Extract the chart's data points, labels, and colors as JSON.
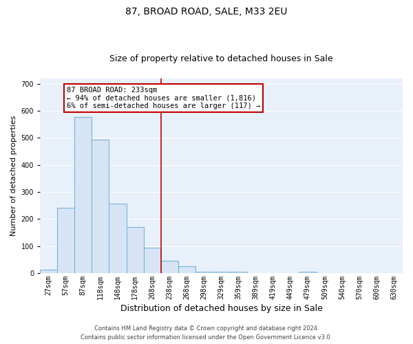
{
  "title": "87, BROAD ROAD, SALE, M33 2EU",
  "subtitle": "Size of property relative to detached houses in Sale",
  "xlabel": "Distribution of detached houses by size in Sale",
  "ylabel": "Number of detached properties",
  "bar_labels": [
    "27sqm",
    "57sqm",
    "87sqm",
    "118sqm",
    "148sqm",
    "178sqm",
    "208sqm",
    "238sqm",
    "268sqm",
    "298sqm",
    "329sqm",
    "359sqm",
    "389sqm",
    "419sqm",
    "449sqm",
    "479sqm",
    "509sqm",
    "540sqm",
    "570sqm",
    "600sqm",
    "630sqm"
  ],
  "bar_values": [
    12,
    243,
    578,
    494,
    258,
    170,
    93,
    46,
    26,
    5,
    5,
    5,
    0,
    0,
    0,
    5,
    0,
    0,
    0,
    0,
    0
  ],
  "bar_color": "#d6e4f5",
  "bar_edge_color": "#6baed6",
  "vline_index": 7,
  "annotation_text": "87 BROAD ROAD: 233sqm\n← 94% of detached houses are smaller (1,816)\n6% of semi-detached houses are larger (117) →",
  "vline_color": "#c00000",
  "annotation_box_edgecolor": "#c00000",
  "ylim": [
    0,
    720
  ],
  "yticks": [
    0,
    100,
    200,
    300,
    400,
    500,
    600,
    700
  ],
  "footer1": "Contains HM Land Registry data © Crown copyright and database right 2024.",
  "footer2": "Contains public sector information licensed under the Open Government Licence v3.0.",
  "background_color": "#e8f0fa",
  "grid_color": "#ffffff",
  "title_fontsize": 10,
  "subtitle_fontsize": 9,
  "ylabel_fontsize": 8,
  "xlabel_fontsize": 9,
  "tick_fontsize": 7,
  "footer_fontsize": 6,
  "ann_fontsize": 7.5
}
